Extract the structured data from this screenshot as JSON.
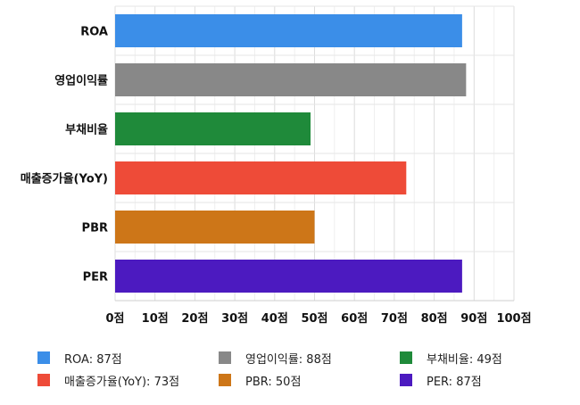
{
  "chart_data": {
    "type": "bar",
    "orientation": "horizontal",
    "categories": [
      "ROA",
      "영업이익률",
      "부채비율",
      "매출증가율(YoY)",
      "PBR",
      "PER"
    ],
    "values": [
      87,
      88,
      49,
      73,
      50,
      87
    ],
    "colors": [
      "#3b8ee8",
      "#888888",
      "#1f8a3a",
      "#ee4b38",
      "#cd7618",
      "#4c1ac0"
    ],
    "unit": "점",
    "xlim": [
      0,
      100
    ],
    "xticks": [
      0,
      10,
      20,
      30,
      40,
      50,
      60,
      70,
      80,
      90,
      100
    ],
    "xtick_labels": [
      "0점",
      "10점",
      "20점",
      "30점",
      "40점",
      "50점",
      "60점",
      "70점",
      "80점",
      "90점",
      "100점"
    ],
    "grid": true,
    "legend_position": "bottom",
    "legend": [
      {
        "label": "ROA: 87점",
        "color": "#3b8ee8"
      },
      {
        "label": "영업이익률: 88점",
        "color": "#888888"
      },
      {
        "label": "부채비율: 49점",
        "color": "#1f8a3a"
      },
      {
        "label": "매출증가율(YoY): 73점",
        "color": "#ee4b38"
      },
      {
        "label": "PBR: 50점",
        "color": "#cd7618"
      },
      {
        "label": "PER: 87점",
        "color": "#4c1ac0"
      }
    ]
  }
}
